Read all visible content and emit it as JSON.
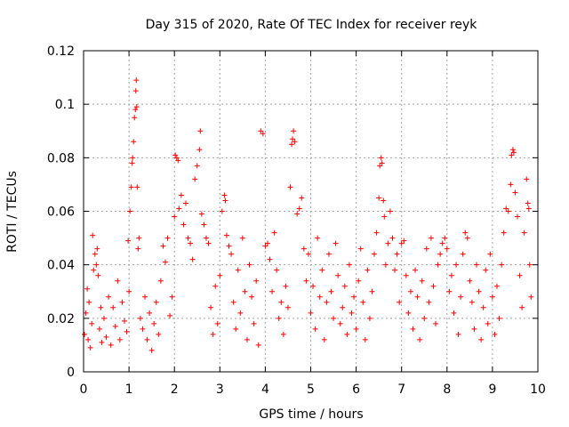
{
  "chart_data": {
    "type": "scatter",
    "title": "Day 315 of 2020, Rate Of TEC Index for receiver reyk",
    "xlabel": "GPS time / hours",
    "ylabel": "ROTI / TECUs",
    "xlim": [
      0,
      10
    ],
    "ylim": [
      0,
      0.12
    ],
    "x_ticks": [
      0,
      1,
      2,
      3,
      4,
      5,
      6,
      7,
      8,
      9,
      10
    ],
    "y_ticks": [
      0,
      0.02,
      0.04,
      0.06,
      0.08,
      0.1,
      0.12
    ],
    "x_tick_labels": [
      "0",
      "1",
      "2",
      "3",
      "4",
      "5",
      "6",
      "7",
      "8",
      "9",
      "10"
    ],
    "y_tick_labels": [
      "0",
      "0.02",
      "0.04",
      "0.06",
      "0.08",
      "0.1",
      "0.12"
    ],
    "grid": true,
    "marker": "+",
    "color": "#ff0000",
    "series": [
      {
        "name": "ROTI",
        "points": [
          [
            0.02,
            0.014
          ],
          [
            0.05,
            0.022
          ],
          [
            0.08,
            0.031
          ],
          [
            0.1,
            0.012
          ],
          [
            0.12,
            0.026
          ],
          [
            0.15,
            0.009
          ],
          [
            0.18,
            0.018
          ],
          [
            0.2,
            0.051
          ],
          [
            0.22,
            0.038
          ],
          [
            0.25,
            0.044
          ],
          [
            0.28,
            0.04
          ],
          [
            0.3,
            0.046
          ],
          [
            0.32,
            0.036
          ],
          [
            0.35,
            0.016
          ],
          [
            0.38,
            0.024
          ],
          [
            0.4,
            0.011
          ],
          [
            0.45,
            0.02
          ],
          [
            0.5,
            0.013
          ],
          [
            0.55,
            0.028
          ],
          [
            0.6,
            0.01
          ],
          [
            0.65,
            0.024
          ],
          [
            0.7,
            0.017
          ],
          [
            0.75,
            0.034
          ],
          [
            0.8,
            0.012
          ],
          [
            0.85,
            0.026
          ],
          [
            0.9,
            0.019
          ],
          [
            0.95,
            0.015
          ],
          [
            0.98,
            0.049
          ],
          [
            1.0,
            0.03
          ],
          [
            1.02,
            0.06
          ],
          [
            1.05,
            0.069
          ],
          [
            1.07,
            0.078
          ],
          [
            1.08,
            0.08
          ],
          [
            1.1,
            0.086
          ],
          [
            1.12,
            0.095
          ],
          [
            1.14,
            0.098
          ],
          [
            1.15,
            0.105
          ],
          [
            1.16,
            0.109
          ],
          [
            1.17,
            0.099
          ],
          [
            1.18,
            0.069
          ],
          [
            1.2,
            0.046
          ],
          [
            1.22,
            0.05
          ],
          [
            1.25,
            0.02
          ],
          [
            1.3,
            0.016
          ],
          [
            1.35,
            0.028
          ],
          [
            1.4,
            0.012
          ],
          [
            1.45,
            0.022
          ],
          [
            1.5,
            0.008
          ],
          [
            1.55,
            0.018
          ],
          [
            1.6,
            0.026
          ],
          [
            1.65,
            0.014
          ],
          [
            1.7,
            0.034
          ],
          [
            1.75,
            0.047
          ],
          [
            1.8,
            0.041
          ],
          [
            1.85,
            0.05
          ],
          [
            1.9,
            0.021
          ],
          [
            1.95,
            0.028
          ],
          [
            2.0,
            0.058
          ],
          [
            2.02,
            0.081
          ],
          [
            2.05,
            0.08
          ],
          [
            2.08,
            0.079
          ],
          [
            2.1,
            0.061
          ],
          [
            2.15,
            0.066
          ],
          [
            2.2,
            0.055
          ],
          [
            2.25,
            0.063
          ],
          [
            2.3,
            0.05
          ],
          [
            2.35,
            0.048
          ],
          [
            2.4,
            0.042
          ],
          [
            2.45,
            0.072
          ],
          [
            2.5,
            0.077
          ],
          [
            2.55,
            0.083
          ],
          [
            2.57,
            0.09
          ],
          [
            2.6,
            0.059
          ],
          [
            2.65,
            0.055
          ],
          [
            2.7,
            0.05
          ],
          [
            2.75,
            0.048
          ],
          [
            2.8,
            0.024
          ],
          [
            2.85,
            0.014
          ],
          [
            2.9,
            0.032
          ],
          [
            2.95,
            0.018
          ],
          [
            3.0,
            0.036
          ],
          [
            3.05,
            0.06
          ],
          [
            3.1,
            0.066
          ],
          [
            3.12,
            0.064
          ],
          [
            3.15,
            0.051
          ],
          [
            3.2,
            0.047
          ],
          [
            3.25,
            0.044
          ],
          [
            3.3,
            0.026
          ],
          [
            3.35,
            0.016
          ],
          [
            3.4,
            0.038
          ],
          [
            3.45,
            0.022
          ],
          [
            3.5,
            0.05
          ],
          [
            3.55,
            0.03
          ],
          [
            3.6,
            0.012
          ],
          [
            3.65,
            0.04
          ],
          [
            3.7,
            0.028
          ],
          [
            3.75,
            0.018
          ],
          [
            3.8,
            0.034
          ],
          [
            3.85,
            0.01
          ],
          [
            3.9,
            0.09
          ],
          [
            3.95,
            0.089
          ],
          [
            4.0,
            0.047
          ],
          [
            4.05,
            0.048
          ],
          [
            4.1,
            0.042
          ],
          [
            4.15,
            0.03
          ],
          [
            4.2,
            0.052
          ],
          [
            4.25,
            0.038
          ],
          [
            4.3,
            0.02
          ],
          [
            4.35,
            0.026
          ],
          [
            4.4,
            0.014
          ],
          [
            4.45,
            0.032
          ],
          [
            4.5,
            0.024
          ],
          [
            4.55,
            0.069
          ],
          [
            4.58,
            0.085
          ],
          [
            4.6,
            0.087
          ],
          [
            4.62,
            0.09
          ],
          [
            4.65,
            0.086
          ],
          [
            4.7,
            0.059
          ],
          [
            4.75,
            0.061
          ],
          [
            4.8,
            0.065
          ],
          [
            4.85,
            0.046
          ],
          [
            4.9,
            0.034
          ],
          [
            4.95,
            0.044
          ],
          [
            5.0,
            0.022
          ],
          [
            5.05,
            0.032
          ],
          [
            5.1,
            0.016
          ],
          [
            5.15,
            0.05
          ],
          [
            5.2,
            0.028
          ],
          [
            5.25,
            0.038
          ],
          [
            5.3,
            0.012
          ],
          [
            5.35,
            0.026
          ],
          [
            5.4,
            0.044
          ],
          [
            5.45,
            0.03
          ],
          [
            5.5,
            0.02
          ],
          [
            5.55,
            0.048
          ],
          [
            5.6,
            0.036
          ],
          [
            5.65,
            0.018
          ],
          [
            5.7,
            0.024
          ],
          [
            5.75,
            0.032
          ],
          [
            5.8,
            0.014
          ],
          [
            5.85,
            0.04
          ],
          [
            5.9,
            0.022
          ],
          [
            5.95,
            0.028
          ],
          [
            6.0,
            0.016
          ],
          [
            6.05,
            0.034
          ],
          [
            6.1,
            0.046
          ],
          [
            6.15,
            0.026
          ],
          [
            6.2,
            0.012
          ],
          [
            6.25,
            0.038
          ],
          [
            6.3,
            0.02
          ],
          [
            6.35,
            0.03
          ],
          [
            6.4,
            0.044
          ],
          [
            6.45,
            0.052
          ],
          [
            6.5,
            0.065
          ],
          [
            6.52,
            0.077
          ],
          [
            6.55,
            0.08
          ],
          [
            6.57,
            0.078
          ],
          [
            6.6,
            0.064
          ],
          [
            6.62,
            0.058
          ],
          [
            6.65,
            0.04
          ],
          [
            6.7,
            0.048
          ],
          [
            6.75,
            0.06
          ],
          [
            6.8,
            0.05
          ],
          [
            6.85,
            0.038
          ],
          [
            6.9,
            0.044
          ],
          [
            6.95,
            0.026
          ],
          [
            7.0,
            0.048
          ],
          [
            7.05,
            0.049
          ],
          [
            7.1,
            0.036
          ],
          [
            7.15,
            0.022
          ],
          [
            7.2,
            0.03
          ],
          [
            7.25,
            0.016
          ],
          [
            7.3,
            0.038
          ],
          [
            7.35,
            0.028
          ],
          [
            7.4,
            0.012
          ],
          [
            7.45,
            0.034
          ],
          [
            7.5,
            0.02
          ],
          [
            7.55,
            0.046
          ],
          [
            7.6,
            0.026
          ],
          [
            7.65,
            0.05
          ],
          [
            7.7,
            0.032
          ],
          [
            7.75,
            0.018
          ],
          [
            7.8,
            0.04
          ],
          [
            7.85,
            0.044
          ],
          [
            7.9,
            0.048
          ],
          [
            7.95,
            0.05
          ],
          [
            8.0,
            0.046
          ],
          [
            8.05,
            0.03
          ],
          [
            8.1,
            0.036
          ],
          [
            8.15,
            0.022
          ],
          [
            8.2,
            0.04
          ],
          [
            8.25,
            0.014
          ],
          [
            8.3,
            0.028
          ],
          [
            8.35,
            0.044
          ],
          [
            8.4,
            0.052
          ],
          [
            8.45,
            0.05
          ],
          [
            8.5,
            0.034
          ],
          [
            8.55,
            0.026
          ],
          [
            8.6,
            0.016
          ],
          [
            8.65,
            0.04
          ],
          [
            8.7,
            0.03
          ],
          [
            8.75,
            0.012
          ],
          [
            8.8,
            0.024
          ],
          [
            8.85,
            0.038
          ],
          [
            8.9,
            0.018
          ],
          [
            8.95,
            0.044
          ],
          [
            9.0,
            0.028
          ],
          [
            9.05,
            0.014
          ],
          [
            9.1,
            0.032
          ],
          [
            9.15,
            0.02
          ],
          [
            9.2,
            0.04
          ],
          [
            9.25,
            0.052
          ],
          [
            9.3,
            0.061
          ],
          [
            9.35,
            0.06
          ],
          [
            9.4,
            0.07
          ],
          [
            9.42,
            0.081
          ],
          [
            9.45,
            0.083
          ],
          [
            9.47,
            0.082
          ],
          [
            9.5,
            0.067
          ],
          [
            9.55,
            0.058
          ],
          [
            9.6,
            0.036
          ],
          [
            9.65,
            0.024
          ],
          [
            9.7,
            0.052
          ],
          [
            9.75,
            0.072
          ],
          [
            9.78,
            0.063
          ],
          [
            9.8,
            0.061
          ],
          [
            9.82,
            0.04
          ],
          [
            9.85,
            0.028
          ]
        ]
      }
    ]
  }
}
